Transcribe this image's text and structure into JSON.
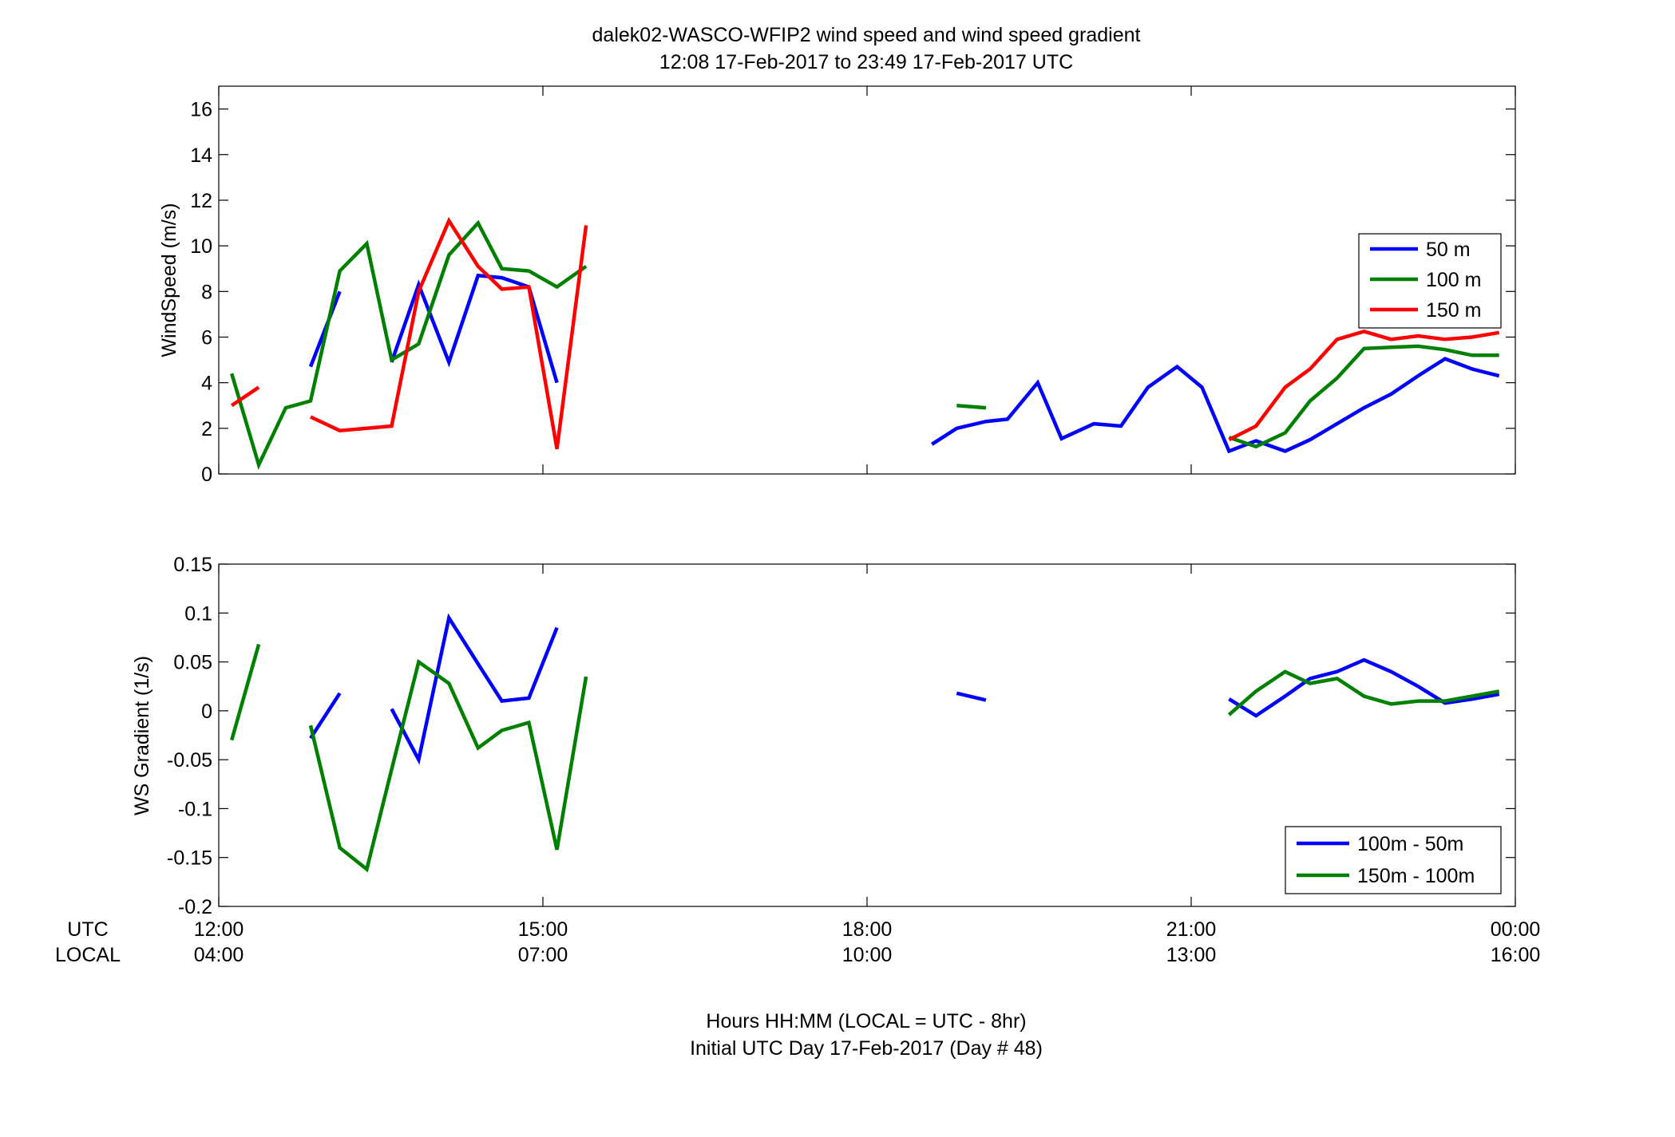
{
  "figure": {
    "title_line1": "dalek02-WASCO-WFIP2  wind speed and wind speed gradient",
    "title_line2": "12:08 17-Feb-2017 to 23:49 17-Feb-2017  UTC",
    "utc_label": "UTC",
    "local_label": "LOCAL",
    "xlabel_line1": "Hours HH:MM  (LOCAL = UTC - 8hr)",
    "xlabel_line2": "Initial UTC Day 17-Feb-2017 (Day # 48)",
    "utc_ticks": [
      "12:00",
      "15:00",
      "18:00",
      "21:00",
      "00:00"
    ],
    "local_ticks": [
      "04:00",
      "07:00",
      "10:00",
      "13:00",
      "16:00"
    ]
  },
  "chart_data": [
    {
      "type": "line",
      "ylabel": "WindSpeed (m/s)",
      "xlim_hours": [
        12,
        24
      ],
      "ylim": [
        0,
        17
      ],
      "yticks": [
        0,
        2,
        4,
        6,
        8,
        10,
        12,
        14,
        16
      ],
      "yticklabels": [
        "0",
        "2",
        "4",
        "6",
        "8",
        "10",
        "12",
        "14",
        "16"
      ],
      "legend_position": "right",
      "series": [
        {
          "name": "50 m",
          "color": "#0000ff",
          "segments": [
            [
              [
                12.85,
                4.7
              ],
              [
                13.12,
                8.0
              ]
            ],
            [
              [
                13.6,
                4.9
              ],
              [
                13.85,
                8.3
              ],
              [
                14.13,
                4.9
              ],
              [
                14.4,
                8.7
              ],
              [
                14.62,
                8.6
              ],
              [
                14.87,
                8.2
              ],
              [
                15.13,
                4.0
              ]
            ],
            [
              [
                18.6,
                1.3
              ],
              [
                18.83,
                2.0
              ],
              [
                19.1,
                2.3
              ],
              [
                19.3,
                2.4
              ],
              [
                19.58,
                4.0
              ],
              [
                19.8,
                1.55
              ],
              [
                20.1,
                2.2
              ],
              [
                20.35,
                2.1
              ],
              [
                20.6,
                3.8
              ],
              [
                20.87,
                4.7
              ],
              [
                21.1,
                3.8
              ],
              [
                21.35,
                1.0
              ],
              [
                21.6,
                1.45
              ],
              [
                21.87,
                1.0
              ],
              [
                22.1,
                1.5
              ],
              [
                22.35,
                2.2
              ],
              [
                22.6,
                2.9
              ],
              [
                22.85,
                3.5
              ],
              [
                23.1,
                4.3
              ],
              [
                23.35,
                5.05
              ],
              [
                23.6,
                4.6
              ],
              [
                23.85,
                4.3
              ]
            ]
          ]
        },
        {
          "name": "100 m",
          "color": "#008000",
          "segments": [
            [
              [
                12.12,
                4.4
              ],
              [
                12.37,
                0.4
              ],
              [
                12.62,
                2.9
              ],
              [
                12.85,
                3.2
              ],
              [
                13.12,
                8.9
              ],
              [
                13.37,
                10.1
              ],
              [
                13.6,
                5.0
              ],
              [
                13.85,
                5.7
              ],
              [
                14.13,
                9.6
              ],
              [
                14.4,
                11.0
              ],
              [
                14.62,
                9.0
              ],
              [
                14.87,
                8.9
              ],
              [
                15.13,
                8.2
              ],
              [
                15.4,
                9.1
              ]
            ],
            [
              [
                18.83,
                3.0
              ],
              [
                19.1,
                2.9
              ]
            ],
            [
              [
                21.35,
                1.6
              ],
              [
                21.6,
                1.2
              ],
              [
                21.87,
                1.8
              ],
              [
                22.1,
                3.2
              ],
              [
                22.35,
                4.2
              ],
              [
                22.6,
                5.5
              ],
              [
                22.85,
                5.55
              ],
              [
                23.1,
                5.6
              ],
              [
                23.35,
                5.45
              ],
              [
                23.6,
                5.2
              ],
              [
                23.85,
                5.2
              ]
            ]
          ]
        },
        {
          "name": "150 m",
          "color": "#ff0000",
          "segments": [
            [
              [
                12.12,
                3.0
              ],
              [
                12.37,
                3.8
              ]
            ],
            [
              [
                12.85,
                2.5
              ],
              [
                13.12,
                1.9
              ],
              [
                13.37,
                2.0
              ],
              [
                13.6,
                2.1
              ],
              [
                13.85,
                8.0
              ],
              [
                14.13,
                11.1
              ],
              [
                14.4,
                9.1
              ],
              [
                14.62,
                8.1
              ],
              [
                14.87,
                8.2
              ],
              [
                15.13,
                1.1
              ],
              [
                15.4,
                10.9
              ]
            ],
            [
              [
                21.35,
                1.5
              ],
              [
                21.6,
                2.1
              ],
              [
                21.87,
                3.8
              ],
              [
                22.1,
                4.6
              ],
              [
                22.35,
                5.9
              ],
              [
                22.6,
                6.25
              ],
              [
                22.85,
                5.9
              ],
              [
                23.1,
                6.05
              ],
              [
                23.35,
                5.9
              ],
              [
                23.6,
                6.0
              ],
              [
                23.85,
                6.2
              ]
            ]
          ]
        }
      ]
    },
    {
      "type": "line",
      "ylabel": "WS Gradient (1/s)",
      "xlim_hours": [
        12,
        24
      ],
      "ylim": [
        -0.2,
        0.15
      ],
      "yticks": [
        -0.2,
        -0.15,
        -0.1,
        -0.05,
        0,
        0.05,
        0.1,
        0.15
      ],
      "yticklabels": [
        "-0.2",
        "-0.15",
        "-0.1",
        "-0.05",
        "0",
        "0.05",
        "0.1",
        "0.15"
      ],
      "legend_position": "bottom-right",
      "series": [
        {
          "name": "100m - 50m",
          "color": "#0000ff",
          "segments": [
            [
              [
                12.85,
                -0.028
              ],
              [
                13.12,
                0.018
              ]
            ],
            [
              [
                13.6,
                0.002
              ],
              [
                13.85,
                -0.05
              ],
              [
                14.13,
                0.095
              ],
              [
                14.4,
                0.048
              ],
              [
                14.62,
                0.01
              ],
              [
                14.87,
                0.013
              ],
              [
                15.13,
                0.085
              ]
            ],
            [
              [
                18.83,
                0.018
              ],
              [
                19.1,
                0.011
              ]
            ],
            [
              [
                21.35,
                0.012
              ],
              [
                21.6,
                -0.005
              ],
              [
                21.87,
                0.015
              ],
              [
                22.1,
                0.033
              ],
              [
                22.35,
                0.04
              ],
              [
                22.6,
                0.052
              ],
              [
                22.85,
                0.04
              ],
              [
                23.1,
                0.025
              ],
              [
                23.35,
                0.008
              ],
              [
                23.6,
                0.012
              ],
              [
                23.85,
                0.017
              ]
            ]
          ]
        },
        {
          "name": "150m - 100m",
          "color": "#008000",
          "segments": [
            [
              [
                12.12,
                -0.03
              ],
              [
                12.37,
                0.068
              ]
            ],
            [
              [
                12.85,
                -0.015
              ],
              [
                13.12,
                -0.14
              ],
              [
                13.37,
                -0.162
              ],
              [
                13.6,
                -0.06
              ],
              [
                13.85,
                0.05
              ],
              [
                14.13,
                0.028
              ],
              [
                14.4,
                -0.038
              ],
              [
                14.62,
                -0.02
              ],
              [
                14.87,
                -0.012
              ],
              [
                15.13,
                -0.142
              ],
              [
                15.4,
                0.035
              ]
            ],
            [
              [
                21.35,
                -0.004
              ],
              [
                21.6,
                0.02
              ],
              [
                21.87,
                0.04
              ],
              [
                22.1,
                0.028
              ],
              [
                22.35,
                0.033
              ],
              [
                22.6,
                0.015
              ],
              [
                22.85,
                0.007
              ],
              [
                23.1,
                0.01
              ],
              [
                23.35,
                0.01
              ],
              [
                23.6,
                0.015
              ],
              [
                23.85,
                0.02
              ]
            ]
          ]
        }
      ]
    }
  ]
}
